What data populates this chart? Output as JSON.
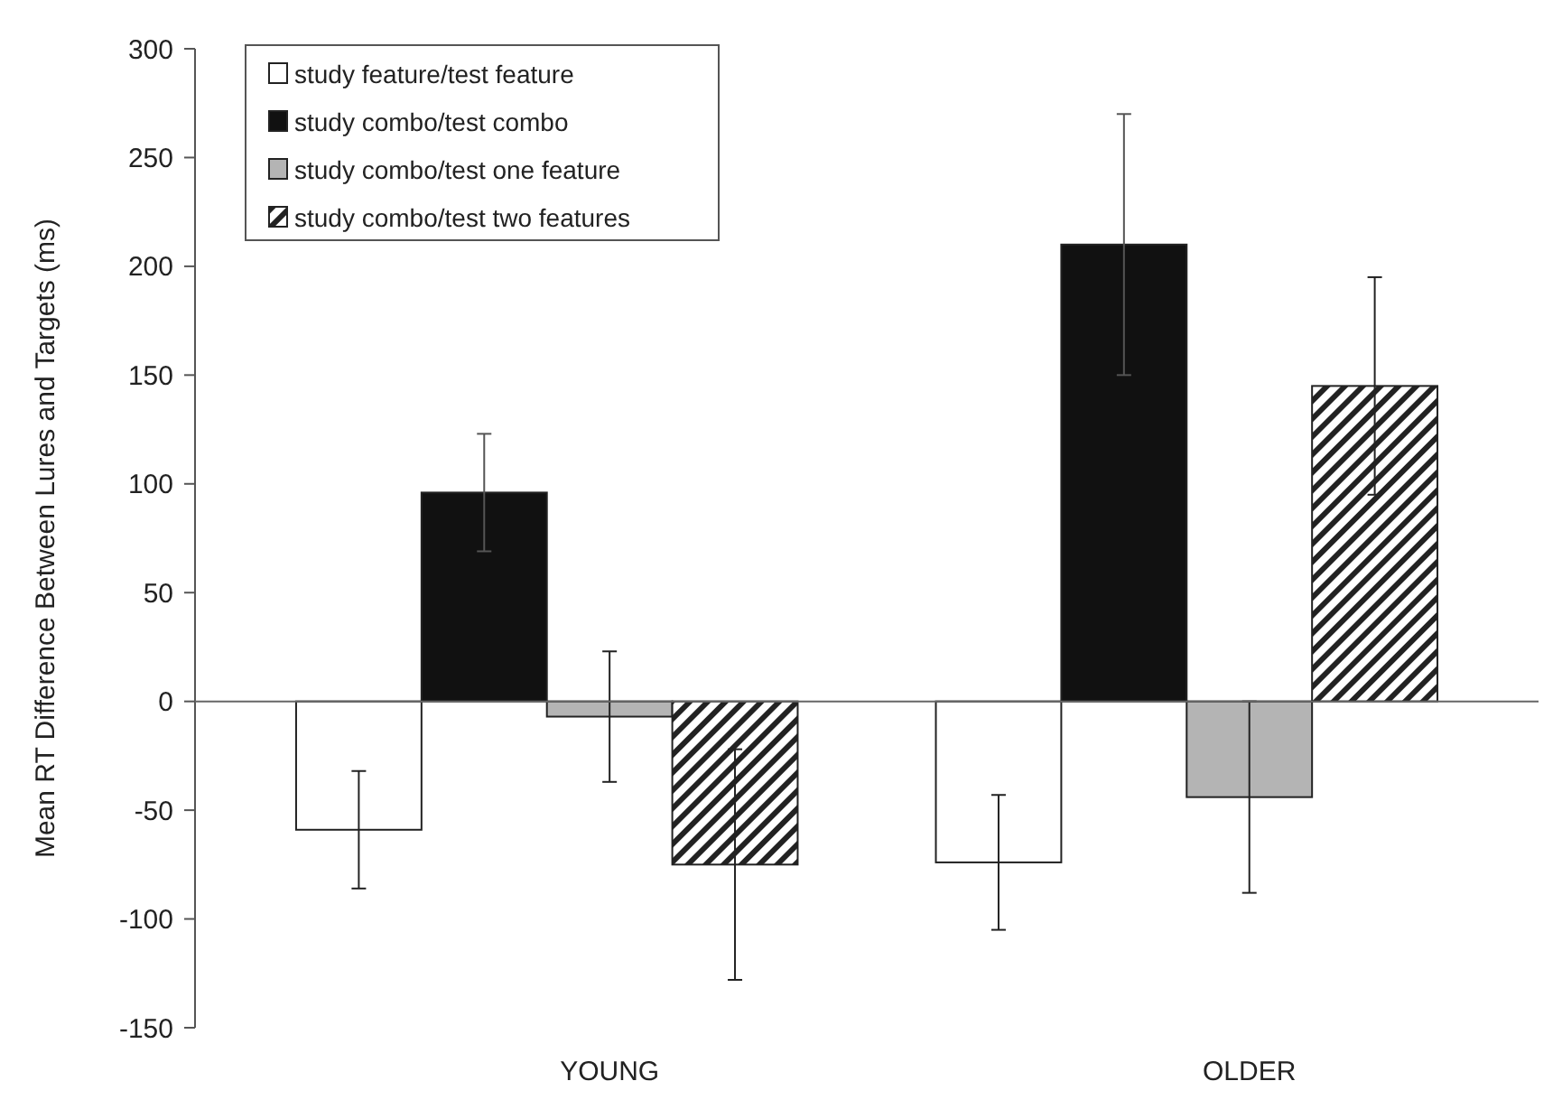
{
  "chart_data": {
    "type": "bar",
    "ylabel": "Mean RT Difference Between Lures and Targets (ms)",
    "categories": [
      "YOUNG",
      "OLDER"
    ],
    "series": [
      {
        "name": "study feature/test feature",
        "color": "#ffffff",
        "values": [
          -59,
          -74
        ],
        "errors": [
          27,
          31
        ]
      },
      {
        "name": "study combo/test combo",
        "color": "#111111",
        "values": [
          96,
          210
        ],
        "errors": [
          27,
          60
        ]
      },
      {
        "name": "study combo/test one feature",
        "color": "#b4b4b4",
        "values": [
          -7,
          -44
        ],
        "errors": [
          30,
          44
        ]
      },
      {
        "name": "study combo/test two features",
        "color": "#222222",
        "values": [
          -75,
          145
        ],
        "errors": [
          53,
          50
        ]
      }
    ],
    "ref_lines": [
      {
        "axis": "y",
        "value": 0
      }
    ],
    "ylim": [
      -150,
      300
    ],
    "yticks": [
      -150,
      -100,
      -50,
      0,
      50,
      100,
      150,
      200,
      250,
      300
    ],
    "grid": false,
    "legend": "top left"
  }
}
